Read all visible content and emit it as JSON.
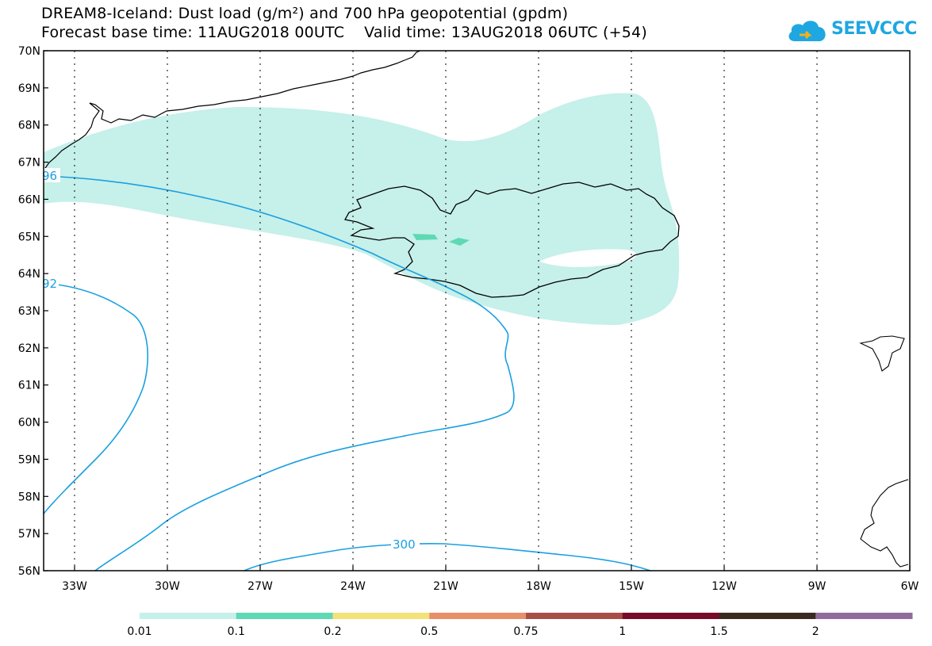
{
  "title": {
    "line1": "DREAM8-Iceland: Dust load (g/m²) and 700 hPa geopotential (gpdm)",
    "line2": "Forecast base time: 11AUG2018 00UTC    Valid time: 13AUG2018 06UTC (+54)"
  },
  "logo": {
    "text": "SEEVCCC",
    "icon": "cloud-icon",
    "color": "#1ea7e1"
  },
  "map": {
    "lat_labels": [
      "70N",
      "69N",
      "68N",
      "67N",
      "66N",
      "65N",
      "64N",
      "63N",
      "62N",
      "61N",
      "60N",
      "59N",
      "58N",
      "57N",
      "56N"
    ],
    "lon_labels": [
      "33W",
      "30W",
      "27W",
      "24W",
      "21W",
      "18W",
      "15W",
      "12W",
      "9W",
      "6W"
    ],
    "contour_labels": [
      "96",
      "92",
      "300"
    ],
    "colors": {
      "dust_light": "#c6f0ea",
      "dust_mid": "#5ed9b4",
      "contour": "#1aa0e0",
      "coast": "#000000"
    }
  },
  "legend": {
    "ticks": [
      "0.01",
      "0.1",
      "0.2",
      "0.5",
      "0.75",
      "1",
      "1.5",
      "2"
    ],
    "colors": [
      "#c6f0ea",
      "#5ed9b4",
      "#f3e27a",
      "#e88f6a",
      "#a94e46",
      "#7a0a2a",
      "#3b2a1f",
      "#936a9c"
    ]
  }
}
